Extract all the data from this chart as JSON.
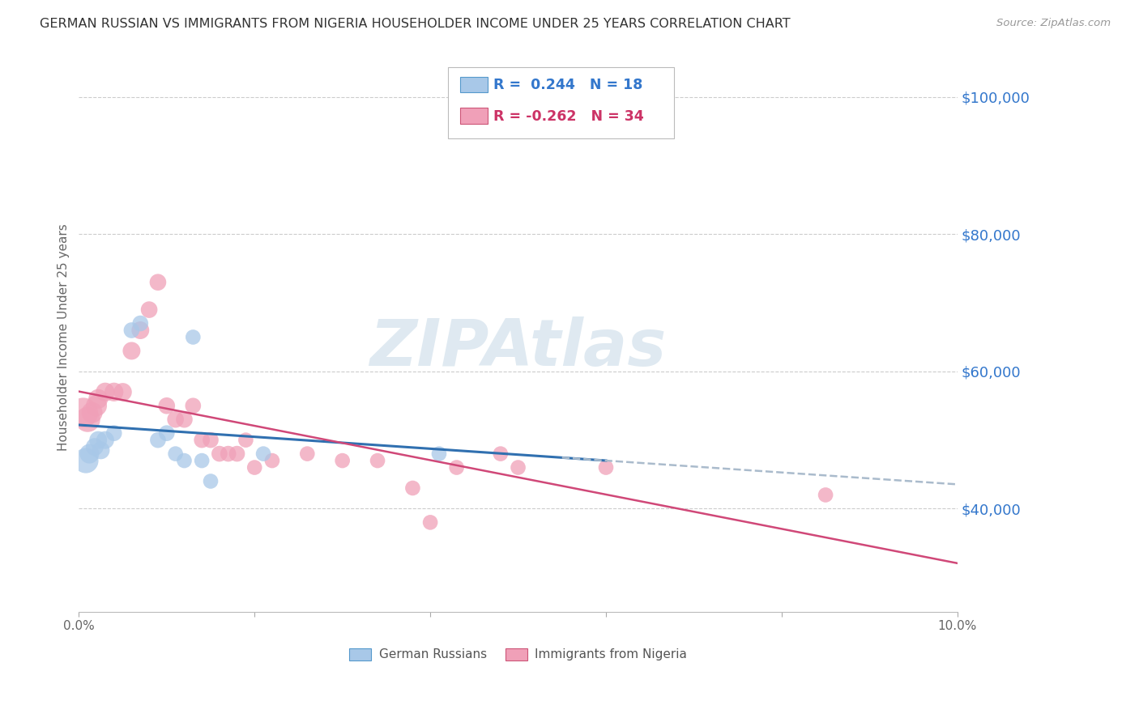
{
  "title": "GERMAN RUSSIAN VS IMMIGRANTS FROM NIGERIA HOUSEHOLDER INCOME UNDER 25 YEARS CORRELATION CHART",
  "source": "Source: ZipAtlas.com",
  "ylabel": "Householder Income Under 25 years",
  "xmin": 0.0,
  "xmax": 0.1,
  "ymin": 25000,
  "ymax": 105000,
  "yticks": [
    40000,
    60000,
    80000,
    100000
  ],
  "ytick_labels": [
    "$40,000",
    "$60,000",
    "$80,000",
    "$100,000"
  ],
  "xticks": [
    0.0,
    0.02,
    0.04,
    0.06,
    0.08,
    0.1
  ],
  "xtick_labels": [
    "0.0%",
    "",
    "",
    "",
    "",
    "10.0%"
  ],
  "watermark": "ZIPAtlas",
  "blue_color": "#a8c8e8",
  "blue_line_color": "#3070b0",
  "pink_color": "#f0a0b8",
  "pink_line_color": "#d04878",
  "dash_line_color": "#aabbcc",
  "blue_scatter_x": [
    0.0008,
    0.0012,
    0.0018,
    0.0022,
    0.0025,
    0.003,
    0.004,
    0.006,
    0.007,
    0.009,
    0.01,
    0.011,
    0.012,
    0.013,
    0.014,
    0.015,
    0.021,
    0.041
  ],
  "blue_scatter_y": [
    47000,
    48000,
    49000,
    50000,
    48500,
    50000,
    51000,
    66000,
    67000,
    50000,
    51000,
    48000,
    47000,
    65000,
    47000,
    44000,
    48000,
    48000
  ],
  "blue_scatter_sizes": [
    500,
    300,
    250,
    250,
    250,
    250,
    200,
    200,
    200,
    200,
    200,
    180,
    180,
    180,
    180,
    180,
    180,
    180
  ],
  "pink_scatter_x": [
    0.0005,
    0.001,
    0.0015,
    0.002,
    0.0022,
    0.003,
    0.004,
    0.005,
    0.006,
    0.007,
    0.008,
    0.009,
    0.01,
    0.011,
    0.012,
    0.013,
    0.014,
    0.015,
    0.016,
    0.017,
    0.018,
    0.019,
    0.02,
    0.022,
    0.026,
    0.03,
    0.034,
    0.038,
    0.04,
    0.043,
    0.048,
    0.05,
    0.06,
    0.085
  ],
  "pink_scatter_y": [
    54000,
    53000,
    54000,
    55000,
    56000,
    57000,
    57000,
    57000,
    63000,
    66000,
    69000,
    73000,
    55000,
    53000,
    53000,
    55000,
    50000,
    50000,
    48000,
    48000,
    48000,
    50000,
    46000,
    47000,
    48000,
    47000,
    47000,
    43000,
    38000,
    46000,
    48000,
    46000,
    46000,
    42000
  ],
  "pink_scatter_sizes": [
    700,
    500,
    350,
    350,
    300,
    280,
    280,
    260,
    250,
    250,
    220,
    220,
    220,
    220,
    220,
    200,
    200,
    200,
    200,
    200,
    200,
    180,
    180,
    180,
    180,
    180,
    180,
    180,
    180,
    180,
    180,
    180,
    180,
    180
  ],
  "background_color": "#ffffff",
  "grid_color": "#cccccc"
}
